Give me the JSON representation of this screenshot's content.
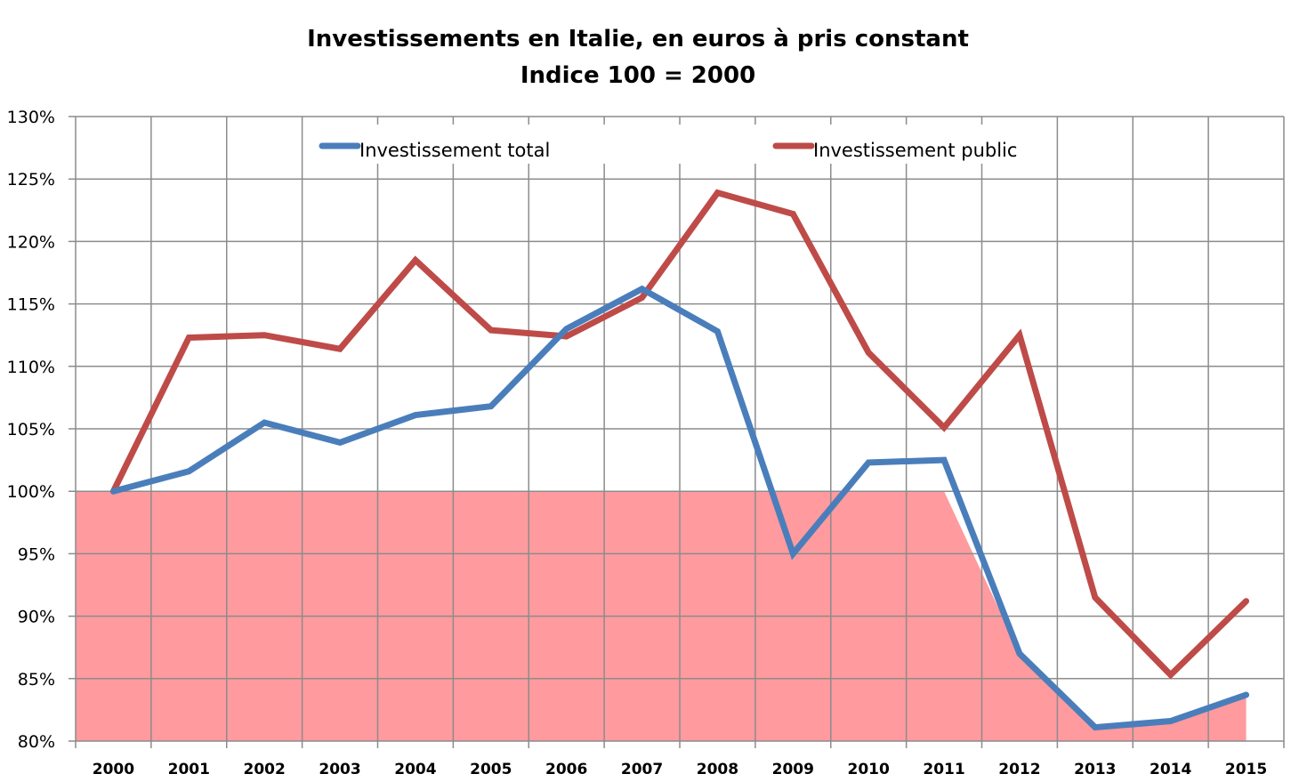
{
  "chart_data": {
    "type": "line",
    "title": "Investissements en Italie, en euros à pris constant",
    "subtitle": "Indice 100 = 2000",
    "xlabel": "",
    "ylabel": "",
    "categories": [
      "2000",
      "2001",
      "2002",
      "2003",
      "2004",
      "2005",
      "2006",
      "2007",
      "2008",
      "2009",
      "2010",
      "2011",
      "2012",
      "2013",
      "2014",
      "2015"
    ],
    "ylim": [
      80,
      130
    ],
    "yticks": [
      80,
      85,
      90,
      95,
      100,
      105,
      110,
      115,
      120,
      125,
      130
    ],
    "ytick_labels": [
      "80%",
      "85%",
      "90%",
      "95%",
      "100%",
      "105%",
      "110%",
      "115%",
      "120%",
      "125%",
      "130%"
    ],
    "grid": true,
    "legend_position": "top",
    "series": [
      {
        "name": "Investissement total",
        "color": "#4a7ebb",
        "values": [
          100,
          101.6,
          105.5,
          103.9,
          106.1,
          106.8,
          113.0,
          116.2,
          112.8,
          95.0,
          102.3,
          102.5,
          87.0,
          81.1,
          81.6,
          83.7
        ]
      },
      {
        "name": "Investissement public",
        "color": "#be4b48",
        "values": [
          100,
          112.3,
          112.5,
          111.4,
          118.5,
          112.9,
          112.4,
          115.5,
          123.9,
          122.2,
          111.1,
          105.1,
          112.5,
          91.5,
          85.3,
          91.2
        ]
      }
    ],
    "shaded_area": {
      "description_level": 100,
      "color": "#ff9a9e"
    }
  }
}
